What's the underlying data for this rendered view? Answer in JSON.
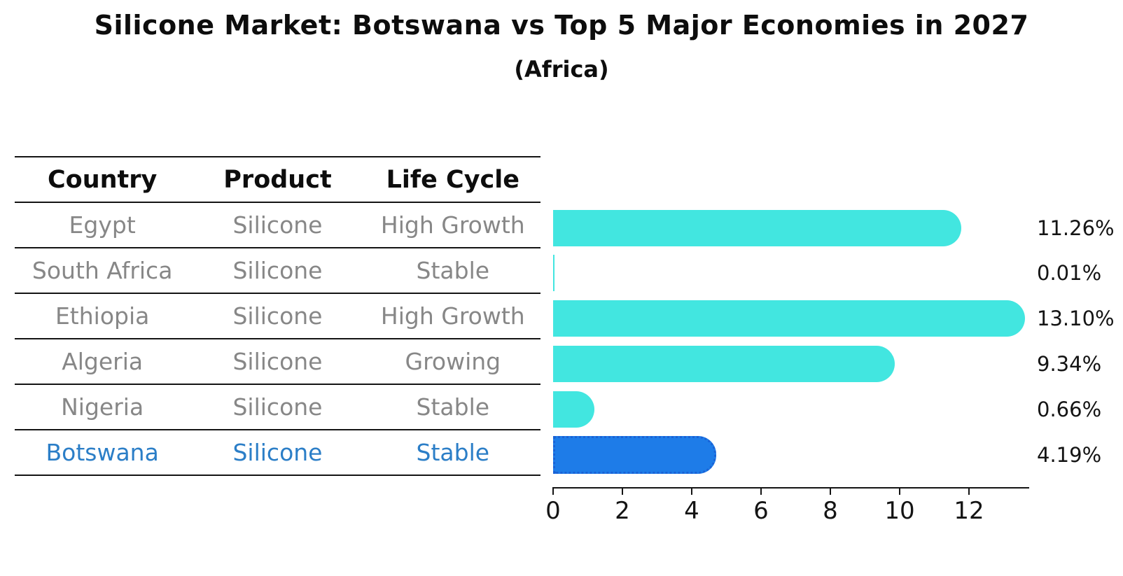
{
  "title": "Silicone Market: Botswana vs Top 5 Major Economies in 2027",
  "subtitle": "(Africa)",
  "table": {
    "columns": [
      "Country",
      "Product",
      "Life Cycle"
    ],
    "rows": [
      {
        "country": "Egypt",
        "product": "Silicone",
        "life_cycle": "High Growth",
        "highlight": false
      },
      {
        "country": "South Africa",
        "product": "Silicone",
        "life_cycle": "Stable",
        "highlight": false
      },
      {
        "country": "Ethiopia",
        "product": "Silicone",
        "life_cycle": "High Growth",
        "highlight": false
      },
      {
        "country": "Algeria",
        "product": "Silicone",
        "life_cycle": "Growing",
        "highlight": false
      },
      {
        "country": "Nigeria",
        "product": "Silicone",
        "life_cycle": "Stable",
        "highlight": false
      },
      {
        "country": "Botswana",
        "product": "Silicone",
        "life_cycle": "Stable",
        "highlight": true
      }
    ]
  },
  "chart_data": {
    "type": "bar",
    "orientation": "horizontal",
    "title": "Silicone Market: Botswana vs Top 5 Major Economies in 2027",
    "subtitle": "(Africa)",
    "categories": [
      "Egypt",
      "South Africa",
      "Ethiopia",
      "Algeria",
      "Nigeria",
      "Botswana"
    ],
    "values": [
      11.26,
      0.01,
      13.1,
      9.34,
      0.66,
      4.19
    ],
    "value_labels": [
      "11.26%",
      "0.01%",
      "13.10%",
      "9.34%",
      "0.66%",
      "4.19%"
    ],
    "x_ticks": [
      0,
      2,
      4,
      6,
      8,
      10,
      12
    ],
    "xlim": [
      0,
      13.75
    ],
    "xlabel": "",
    "ylabel": "",
    "grid": false,
    "legend": false,
    "highlight_index": 5
  },
  "colors": {
    "bar": "#42E6E0",
    "highlight_bar": "#1E7CE8",
    "highlight_border": "#1A62D6",
    "highlight_text": "#2B7EC7",
    "row_text": "#878787",
    "header_text": "#0D0D0D",
    "line": "#141414"
  }
}
